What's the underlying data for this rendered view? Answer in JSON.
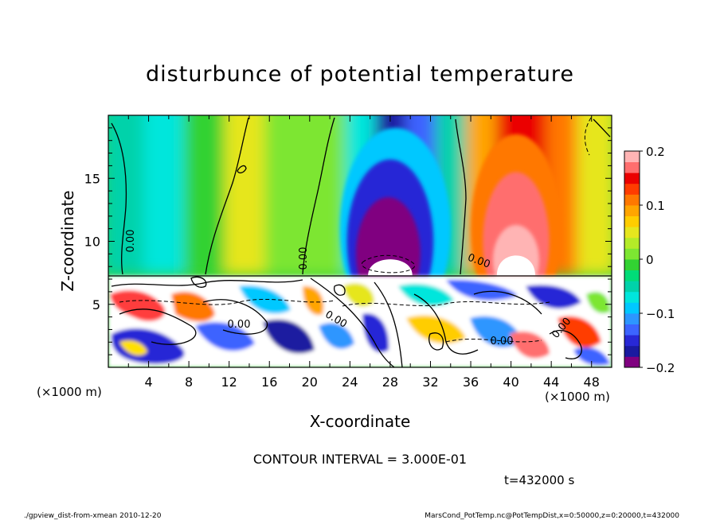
{
  "chart_data": {
    "type": "heatmap",
    "title": "disturbunce of potential temperature",
    "xlabel": "X-coordinate",
    "ylabel": "Z-coordinate",
    "x_unit": "(×1000 m)",
    "z_unit": "(×1000 m)",
    "xlim": [
      0,
      50
    ],
    "ylim": [
      0,
      20
    ],
    "x_ticks": [
      4,
      8,
      12,
      16,
      20,
      24,
      28,
      32,
      36,
      40,
      44,
      48
    ],
    "y_ticks": [
      5,
      10,
      15
    ],
    "colorbar": {
      "vmin": -0.2,
      "vmax": 0.2,
      "ticks": [
        0.2,
        0.1,
        0,
        -0.1,
        -0.2
      ],
      "tick_labels": [
        "0.2",
        "0.1",
        "0",
        "−0.1",
        "−0.2"
      ],
      "colors": [
        "#800080",
        "#1a1aa0",
        "#2828d6",
        "#3c64ff",
        "#2d96ff",
        "#00c8ff",
        "#00e6dc",
        "#00d2aa",
        "#00dc78",
        "#32d232",
        "#7de632",
        "#b4eb28",
        "#e6e61e",
        "#ffcd00",
        "#ffa500",
        "#ff7800",
        "#ff3c00",
        "#eb0000",
        "#ff6e6e",
        "#ffb4b4"
      ]
    },
    "contour_label": "0.00",
    "contour_interval_text": "CONTOUR INTERVAL = 3.000E-01",
    "time_text": "t=432000 s",
    "footer_left": "./gpview_dist-from-xmean   2010-12-20",
    "footer_right": "MarsCond_PotTemp.nc@PotTempDist,x=0:50000,z=0:20000,t=432000",
    "field_columns": [
      {
        "x": 0,
        "value": -0.05
      },
      {
        "x": 4,
        "value": -0.07
      },
      {
        "x": 8,
        "value": -0.02
      },
      {
        "x": 12,
        "value": 0.04
      },
      {
        "x": 16,
        "value": 0.02
      },
      {
        "x": 20,
        "value": 0.0
      },
      {
        "x": 24,
        "value": -0.08
      },
      {
        "x": 27,
        "value": -0.18
      },
      {
        "x": 30,
        "value": -0.14
      },
      {
        "x": 33,
        "value": -0.04
      },
      {
        "x": 36,
        "value": 0.08
      },
      {
        "x": 39,
        "value": 0.14
      },
      {
        "x": 41,
        "value": 0.15
      },
      {
        "x": 44,
        "value": 0.1
      },
      {
        "x": 47,
        "value": 0.05
      },
      {
        "x": 50,
        "value": 0.03
      }
    ],
    "layer_boundary_z": 7.3
  }
}
